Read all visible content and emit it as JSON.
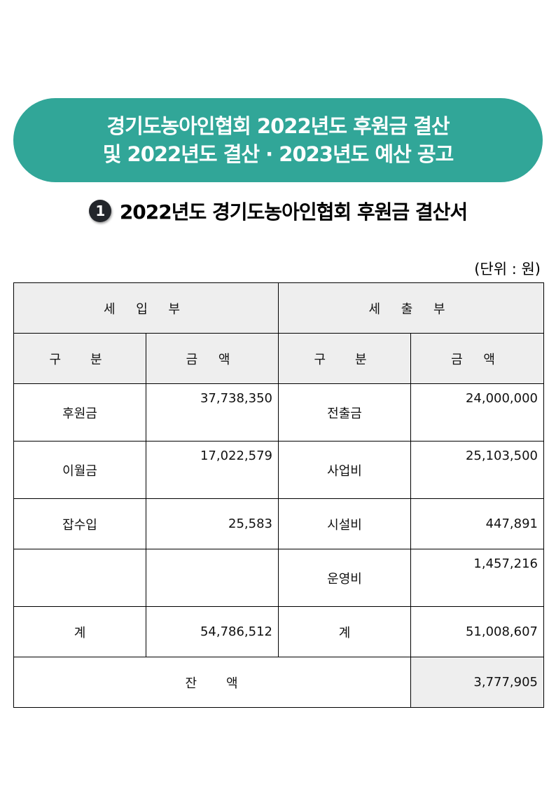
{
  "banner": {
    "line1": "경기도농아인협회 2022년도 후원금 결산",
    "line2": "및 2022년도 결산 · 2023년도 예산 공고",
    "color": "#31a698"
  },
  "section": {
    "number": "1",
    "title": "2022년도 경기도농아인협회 후원금 결산서"
  },
  "unit": "(단위 : 원)",
  "table": {
    "income_header": "세 입 부",
    "expense_header": "세 출 부",
    "col_category": "구　분",
    "col_amount": "금 액",
    "rows": [
      {
        "in_label": "후원금",
        "in_amount": "37,738,350",
        "out_label": "전출금",
        "out_amount": "24,000,000"
      },
      {
        "in_label": "이월금",
        "in_amount": "17,022,579",
        "out_label": "사업비",
        "out_amount": "25,103,500"
      },
      {
        "in_label": "잡수입",
        "in_amount": "25,583",
        "out_label": "시설비",
        "out_amount": "447,891"
      },
      {
        "in_label": "",
        "in_amount": "",
        "out_label": "운영비",
        "out_amount": "1,457,216"
      },
      {
        "in_label": "계",
        "in_amount": "54,786,512",
        "out_label": "계",
        "out_amount": "51,008,607"
      }
    ],
    "balance_label": "잔　　액",
    "balance_amount": "3,777,905"
  }
}
